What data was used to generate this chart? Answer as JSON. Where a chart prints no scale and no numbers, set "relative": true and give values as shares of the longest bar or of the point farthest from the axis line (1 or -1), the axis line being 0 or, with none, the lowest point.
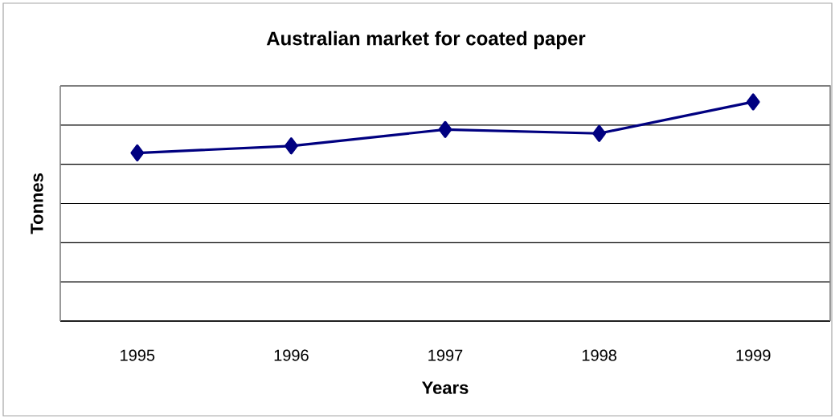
{
  "chart_data": {
    "type": "line",
    "title": "Australian market for coated paper",
    "xlabel": "Years",
    "ylabel": "Tonnes",
    "categories": [
      "1995",
      "1996",
      "1997",
      "1998",
      "1999"
    ],
    "relative": true,
    "series": [
      {
        "color": "#000080",
        "values": [
          0.767,
          0.799,
          0.874,
          0.856,
          1
        ]
      }
    ],
    "grid": "y",
    "marker": "diamond",
    "line_style": "solid"
  }
}
